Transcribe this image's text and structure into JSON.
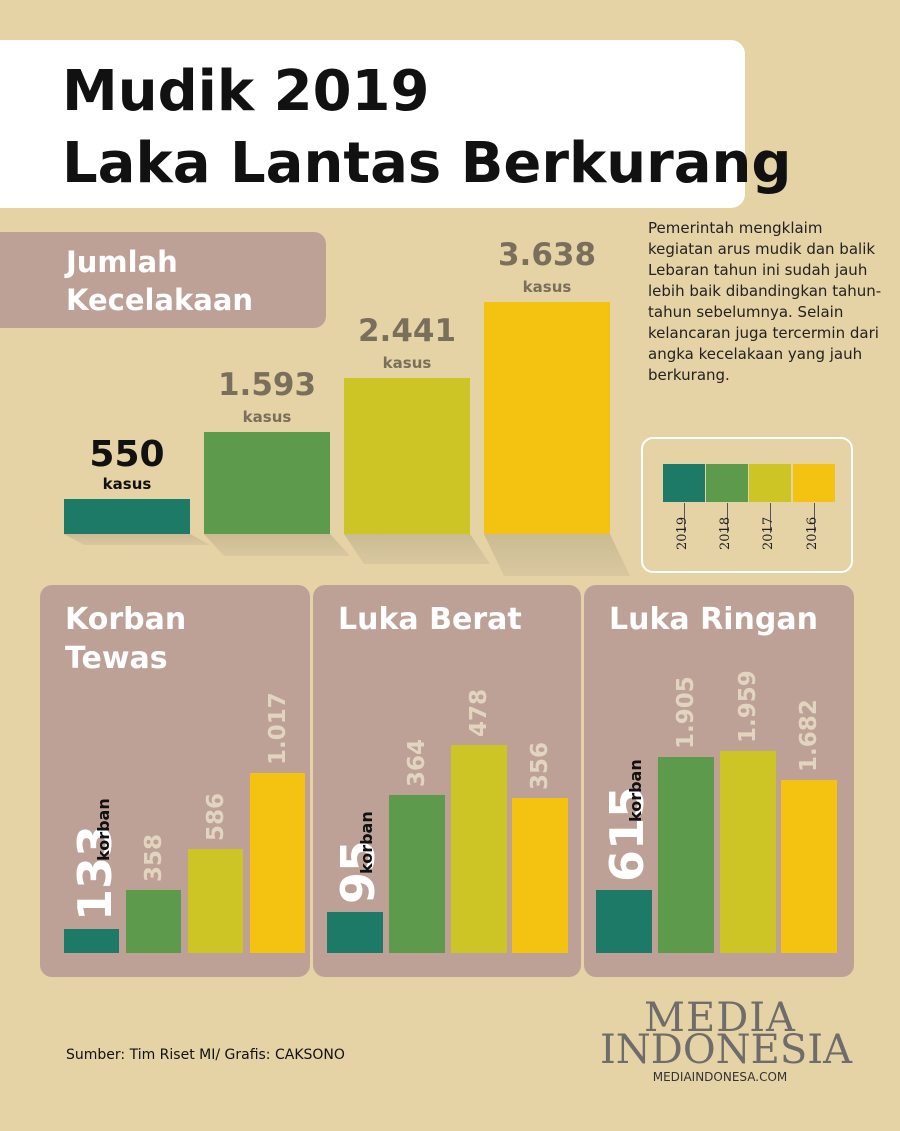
{
  "header": {
    "title_line1": "Mudik 2019",
    "title_line2": "Laka Lantas Berkurang"
  },
  "description": "Pemerintah mengklaim kegiatan arus mudik dan balik Lebaran tahun ini sudah jauh lebih baik dibandingkan tahun-tahun sebelumnya. Selain kelancaran juga tercermin dari angka kecelakaan yang jauh berkurang.",
  "colors": {
    "2019": "#1c7a66",
    "2018": "#5e9a4b",
    "2017": "#cdc525",
    "2016": "#f4c311",
    "panel": "#bda196",
    "background": "#e5d3a6"
  },
  "chart_data": [
    {
      "type": "bar",
      "title": "Jumlah Kecelakaan",
      "categories": [
        "2019",
        "2018",
        "2017",
        "2016"
      ],
      "values": [
        550,
        1593,
        2441,
        3638
      ],
      "value_labels": [
        "550",
        "1.593",
        "2.441",
        "3.638"
      ],
      "unit": "kasus",
      "legend": [
        "2019",
        "2018",
        "2017",
        "2016"
      ],
      "legend_position": "right"
    },
    {
      "type": "bar",
      "title": "Korban Tewas",
      "categories": [
        "2019",
        "2018",
        "2017",
        "2016"
      ],
      "values": [
        133,
        358,
        586,
        1017
      ],
      "value_labels": [
        "133",
        "358",
        "586",
        "1.017"
      ],
      "unit": "korban"
    },
    {
      "type": "bar",
      "title": "Luka Berat",
      "categories": [
        "2019",
        "2018",
        "2017",
        "2016"
      ],
      "values": [
        95,
        364,
        478,
        356
      ],
      "value_labels": [
        "95",
        "364",
        "478",
        "356"
      ],
      "unit": "korban"
    },
    {
      "type": "bar",
      "title": "Luka Ringan",
      "categories": [
        "2019",
        "2018",
        "2017",
        "2016"
      ],
      "values": [
        615,
        1905,
        1959,
        1682
      ],
      "value_labels": [
        "615",
        "1.905",
        "1.959",
        "1.682"
      ],
      "unit": "korban"
    }
  ],
  "source": "Sumber: Tim Riset MI/ Grafis: CAKSONO",
  "brand": {
    "line1": "MEDIA",
    "line2": "INDONESIA",
    "url": "MEDIAINDONESA.COM"
  }
}
